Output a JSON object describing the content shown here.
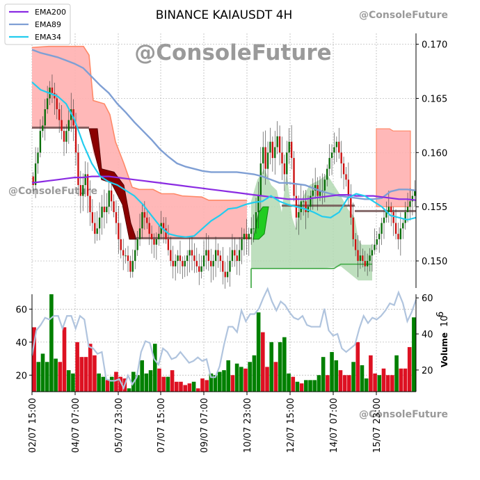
{
  "chart_data": {
    "type": "candlestick",
    "title": "BINANCE KAIAUSDT 4H",
    "watermark": "@ConsoleFuture",
    "price_axis": {
      "ylim": [
        0.1475,
        0.171
      ],
      "ticks": [
        "0.150",
        "0.155",
        "0.160",
        "0.165",
        "0.170"
      ]
    },
    "volume_axis": {
      "label": "Volume",
      "scale_label": "10",
      "scale_exponent": "6",
      "left_ticks": [
        "20",
        "40",
        "60"
      ],
      "right_ticks": [
        "20",
        "40",
        "60"
      ],
      "left_ylim": [
        10,
        69
      ],
      "right_ylim": [
        8,
        62
      ]
    },
    "x_ticks": [
      "02/07 15:00",
      "04/07 07:00",
      "05/07 23:00",
      "07/07 15:00",
      "09/07 07:00",
      "10/07 23:00",
      "12/07 15:00",
      "14/07 07:00",
      "15/07 23:00"
    ],
    "legend": [
      {
        "name": "EMA200",
        "color": "#8a2be2"
      },
      {
        "name": "EMA89",
        "color": "#7f9fd4"
      },
      {
        "name": "EMA34",
        "color": "#22ccee"
      }
    ],
    "colors": {
      "up": "#0a6e0a",
      "down": "#cc1111",
      "vol_up": "#008000",
      "vol_down": "#dd1122",
      "red_band": "#ffb0b0",
      "red_band_edge": "#ff8866",
      "green_band": "#b3d9b3",
      "green_band_edge": "#4caf50",
      "support_line": "#705050",
      "obv": "#b0c4de"
    },
    "close": [
      0.157,
      0.159,
      0.16,
      0.162,
      0.1625,
      0.164,
      0.165,
      0.166,
      0.1655,
      0.165,
      0.164,
      0.163,
      0.162,
      0.161,
      0.162,
      0.163,
      0.164,
      0.1625,
      0.16,
      0.157,
      0.156,
      0.157,
      0.158,
      0.156,
      0.1545,
      0.1535,
      0.1525,
      0.153,
      0.154,
      0.155,
      0.1545,
      0.155,
      0.1565,
      0.1555,
      0.1545,
      0.1535,
      0.152,
      0.151,
      0.1505,
      0.1505,
      0.15,
      0.149,
      0.15,
      0.151,
      0.152,
      0.153,
      0.1545,
      0.154,
      0.1535,
      0.1525,
      0.152,
      0.1515,
      0.152,
      0.1525,
      0.1535,
      0.153,
      0.152,
      0.151,
      0.15,
      0.1495,
      0.15,
      0.1505,
      0.15,
      0.1495,
      0.15,
      0.1505,
      0.151,
      0.1505,
      0.15,
      0.1495,
      0.149,
      0.1495,
      0.1505,
      0.151,
      0.15,
      0.1495,
      0.15,
      0.151,
      0.1505,
      0.15,
      0.149,
      0.1485,
      0.149,
      0.15,
      0.151,
      0.1505,
      0.15,
      0.151,
      0.152,
      0.1525,
      0.152,
      0.1525,
      0.153,
      0.153,
      0.1545,
      0.156,
      0.159,
      0.1605,
      0.1585,
      0.16,
      0.161,
      0.1595,
      0.1605,
      0.1615,
      0.16,
      0.159,
      0.158,
      0.16,
      0.161,
      0.1595,
      0.156,
      0.154,
      0.1545,
      0.1555,
      0.1555,
      0.1545,
      0.155,
      0.156,
      0.1565,
      0.157,
      0.156,
      0.1565,
      0.1565,
      0.1575,
      0.1585,
      0.1595,
      0.16,
      0.1605,
      0.161,
      0.16,
      0.159,
      0.158,
      0.1575,
      0.156,
      0.154,
      0.152,
      0.151,
      0.15,
      0.1505,
      0.15,
      0.1495,
      0.15,
      0.1505,
      0.151,
      0.1515,
      0.152,
      0.1525,
      0.1535,
      0.154,
      0.1545,
      0.155,
      0.1545,
      0.1535,
      0.1525,
      0.152,
      0.153,
      0.1535,
      0.1545,
      0.155,
      0.1555,
      0.156,
      0.1565
    ],
    "candle_step": 1,
    "ema200": [
      0.1572,
      0.1573,
      0.1574,
      0.1575,
      0.1576,
      0.1577,
      0.1577,
      0.1578,
      0.1578,
      0.1578,
      0.1577,
      0.1576,
      0.1575,
      0.1574,
      0.1573,
      0.1572,
      0.1571,
      0.157,
      0.1569,
      0.1568,
      0.1567,
      0.1566,
      0.1565,
      0.1564,
      0.1563,
      0.1562,
      0.1561,
      0.156,
      0.1559,
      0.1558,
      0.1557,
      0.1557,
      0.1557,
      0.1558,
      0.1559,
      0.156,
      0.1561,
      0.1561,
      0.156,
      0.156,
      0.156,
      0.1559,
      0.1558,
      0.1557,
      0.1557,
      0.1556
    ],
    "ema89": [
      0.1695,
      0.1692,
      0.169,
      0.1688,
      0.1685,
      0.1682,
      0.1678,
      0.167,
      0.1662,
      0.1655,
      0.1645,
      0.1637,
      0.1628,
      0.162,
      0.1612,
      0.1603,
      0.1596,
      0.159,
      0.1587,
      0.1585,
      0.1583,
      0.1582,
      0.1582,
      0.1582,
      0.1582,
      0.1581,
      0.158,
      0.1578,
      0.1575,
      0.1572,
      0.1572,
      0.1571,
      0.157,
      0.1567,
      0.1564,
      0.1562,
      0.156,
      0.1559,
      0.1558,
      0.1557,
      0.1557,
      0.1558,
      0.1564,
      0.1566,
      0.1566,
      0.1565
    ],
    "ema34": [
      0.1665,
      0.1658,
      0.1655,
      0.1652,
      0.1645,
      0.163,
      0.1608,
      0.159,
      0.1578,
      0.1573,
      0.157,
      0.1565,
      0.156,
      0.1552,
      0.1542,
      0.1532,
      0.1525,
      0.1523,
      0.1522,
      0.1523,
      0.153,
      0.1537,
      0.1542,
      0.1548,
      0.1549,
      0.1552,
      0.1554,
      0.1555,
      0.156,
      0.1555,
      0.1552,
      0.155,
      0.1548,
      0.1545,
      0.1541,
      0.154,
      0.1545,
      0.1558,
      0.1562,
      0.156,
      0.1555,
      0.155,
      0.1542,
      0.154,
      0.1538,
      0.154
    ],
    "volume_left_values": [
      49,
      28,
      33,
      28,
      72,
      30,
      28,
      49,
      23,
      21,
      40,
      31,
      31,
      39,
      32,
      21,
      19,
      17,
      19,
      22,
      19,
      18,
      12,
      22,
      20,
      29,
      21,
      23,
      39,
      24,
      19,
      19,
      23,
      16,
      16,
      14,
      15,
      16,
      12,
      18,
      17,
      21,
      20,
      22,
      23,
      29,
      20,
      27,
      25,
      24,
      28,
      32,
      58,
      46,
      25,
      40,
      28,
      40,
      43,
      21,
      19,
      16,
      15,
      17,
      17,
      17,
      20,
      31,
      20,
      34,
      29,
      23,
      20,
      20,
      28,
      40,
      26,
      18,
      32,
      21,
      20,
      24,
      20,
      20,
      32,
      24,
      24,
      37,
      55
    ],
    "volume_up": [
      false,
      true,
      true,
      true,
      true,
      true,
      false,
      false,
      true,
      true,
      false,
      false,
      false,
      false,
      false,
      true,
      true,
      false,
      true,
      false,
      false,
      false,
      true,
      true,
      true,
      true,
      true,
      true,
      true,
      false,
      false,
      true,
      false,
      false,
      false,
      false,
      false,
      true,
      false,
      false,
      false,
      true,
      true,
      true,
      true,
      true,
      false,
      true,
      true,
      false,
      true,
      true,
      true,
      false,
      false,
      true,
      false,
      true,
      true,
      true,
      false,
      true,
      false,
      true,
      true,
      true,
      true,
      true,
      false,
      true,
      true,
      false,
      false,
      false,
      true,
      false,
      true,
      true,
      false,
      false,
      true,
      false,
      false,
      false,
      true,
      false,
      false,
      false,
      true
    ],
    "obv": [
      28,
      42,
      45,
      49,
      48,
      50,
      50,
      43,
      50,
      50,
      43,
      50,
      48,
      33,
      32,
      29,
      30,
      15,
      14,
      14,
      15,
      10,
      17,
      12,
      16,
      30,
      36,
      35,
      26,
      23,
      32,
      30,
      26,
      27,
      30,
      27,
      24,
      25,
      27,
      25,
      26,
      16,
      16,
      22,
      34,
      44,
      44,
      41,
      53,
      47,
      51,
      51,
      54,
      60,
      65,
      58,
      53,
      58,
      56,
      52,
      49,
      48,
      50,
      45,
      44,
      44,
      44,
      54,
      42,
      39,
      40,
      32,
      30,
      32,
      34,
      43,
      50,
      46,
      49,
      48,
      50,
      53,
      57,
      56,
      63,
      57,
      47,
      52,
      59
    ]
  }
}
